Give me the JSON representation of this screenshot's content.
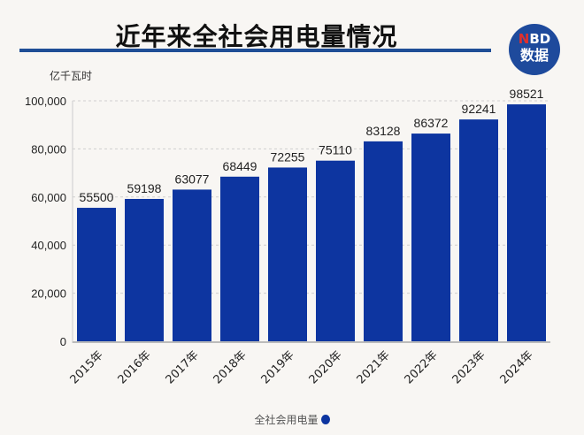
{
  "header": {
    "title": "近年来全社会用电量情况",
    "logo_line1_n": "N",
    "logo_line1_rest": "BD",
    "logo_line2": "数据"
  },
  "chart_data": {
    "type": "bar",
    "title": "近年来全社会用电量情况",
    "ylabel": "亿千瓦时",
    "xlabel": "",
    "categories": [
      "2015年",
      "2016年",
      "2017年",
      "2018年",
      "2019年",
      "2020年",
      "2021年",
      "2022年",
      "2023年",
      "2024年"
    ],
    "series": [
      {
        "name": "全社会用电量",
        "values": [
          55500,
          59198,
          63077,
          68449,
          72255,
          75110,
          83128,
          86372,
          92241,
          98521
        ],
        "color": "#0d35a0"
      }
    ],
    "ylim": [
      0,
      100000
    ],
    "yticks": [
      0,
      20000,
      40000,
      60000,
      80000,
      100000
    ],
    "ytick_labels": [
      "0",
      "20,000",
      "40,000",
      "60,000",
      "80,000",
      "100,000"
    ],
    "grid": true,
    "legend": "bottom"
  }
}
